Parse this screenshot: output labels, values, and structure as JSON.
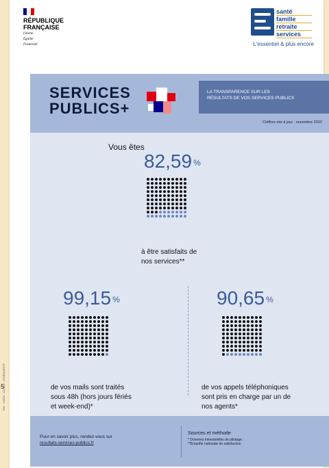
{
  "header": {
    "rf_title_line1": "RÉPUBLIQUE",
    "rf_title_line2": "FRANÇAISE",
    "rf_motto_1": "Liberté",
    "rf_motto_2": "Égalité",
    "rf_motto_3": "Fraternité",
    "msa_words": [
      "santé",
      "famille",
      "retraite",
      "services"
    ],
    "msa_tagline": "L'essentiel & plus encore"
  },
  "banner": {
    "title_line1": "SERVICES",
    "title_line2": "PUBLICS+",
    "box_line1": "LA TRANSPARENCE SUR LES",
    "box_line2": "RÉSULTATS DE VOS SERVICES PUBLICS",
    "date": "Chiffres mis à jour : novembre 2022"
  },
  "stat_satisfaction": {
    "intro": "Vous êtes",
    "value": "82,59",
    "unit": "%",
    "fraction": 0.8259,
    "caption_line1": "à être satisfaits de",
    "caption_line2": "nos services**"
  },
  "stat_mails": {
    "value": "99,15",
    "unit": "%",
    "fraction": 0.9915,
    "caption_line1": "de vos mails sont traités",
    "caption_line2": "sous 48h (hors jours fériés",
    "caption_line3": "et week-end)*"
  },
  "stat_calls": {
    "value": "90,65",
    "unit": "%",
    "fraction": 0.9065,
    "caption_line1": "de vos appels téléphoniques",
    "caption_line2": "sont pris en charge par un de",
    "caption_line3": "nos agents*"
  },
  "footer": {
    "more_info": "Pour en savoir plus, rendez-vous sur",
    "link": "resultats-services-publics.fr",
    "sources_title": "Sources et méthode",
    "note1": "* Données trimestrielles de pilotage.",
    "note2": "**Enquête nationale de satisfaction"
  },
  "side_reference": "Réf. : 12003 - 11/2022 - CCMSA/ESTP",
  "edge_number": "5",
  "colors": {
    "navy": "#0e1a3b",
    "accent_blue": "#3b5a9a",
    "dot_dark": "#111111",
    "dot_light": "#6b86c4",
    "banner": "#a6b8d9",
    "panel": "#dfe5f1",
    "flag_blue": "#000091",
    "flag_red": "#e1000f"
  }
}
